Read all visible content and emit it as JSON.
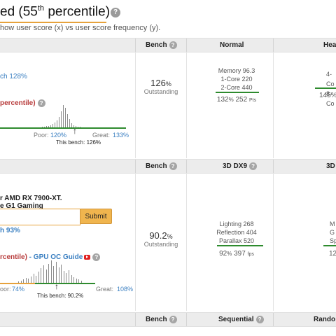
{
  "page": {
    "title_pre": "ed (55",
    "title_sup": "th",
    "title_post": " percentile)",
    "subtitle": "how user score (x) vs user score frequency (y)."
  },
  "cpu": {
    "header": {
      "bench": "Bench",
      "normal": "Normal",
      "heavy": "Hea"
    },
    "effective": "ch 128%",
    "percentile": "percentile)",
    "poor_label": "Poor:",
    "poor_value": "120%",
    "great_label": "Great:",
    "great_value": "133%",
    "this_bench": "This bench: 126%",
    "bench_value": "126",
    "bench_unit": "%",
    "bench_rating": "Outstanding",
    "normal": {
      "lines": [
        "Memory 96.3",
        "1-Core 220",
        "2-Core 440"
      ],
      "summary_pct": "132",
      "summary_pts": "252",
      "summary_unit": "Pts"
    },
    "heavy": {
      "lines": [
        "4-Co",
        "8-Co"
      ],
      "summary": "145%"
    },
    "histogram": [
      1,
      1,
      2,
      2,
      3,
      5,
      7,
      9,
      14,
      22,
      30,
      26,
      18,
      11,
      6,
      3,
      2,
      1,
      1
    ]
  },
  "gpu": {
    "header": {
      "bench": "Bench",
      "dx9": "3D DX9",
      "dx10": "3D"
    },
    "model": "r AMD RX 7900-XT.",
    "variant": "e G1 Gaming",
    "submit": "Submit",
    "effective": "h 93%",
    "percentile": "rcentile)",
    "guide": " - GPU OC Guide",
    "poor_label": "oor:",
    "poor_value": "74%",
    "great_label": "Great:",
    "great_value": "108%",
    "this_bench": "This bench: 90.2%",
    "bench_value": "90.2",
    "bench_unit": "%",
    "bench_rating": "Outstanding",
    "dx9": {
      "lines": [
        "Lighting 268",
        "Reflection 404",
        "Parallax 520"
      ],
      "summary_pct": "92",
      "summary_fps": "397",
      "summary_unit": "fps"
    },
    "dx10": {
      "lines": [
        "M",
        "G",
        "Sp"
      ],
      "summary": "12"
    },
    "histogram": [
      2,
      3,
      4,
      6,
      5,
      8,
      11,
      9,
      14,
      18,
      22,
      17,
      24,
      28,
      21,
      26,
      19,
      23,
      15,
      12,
      16,
      10,
      7,
      5,
      4,
      3
    ]
  },
  "ssd": {
    "header": {
      "bench": "Bench",
      "sequential": "Sequential",
      "random": "Rando"
    }
  }
}
